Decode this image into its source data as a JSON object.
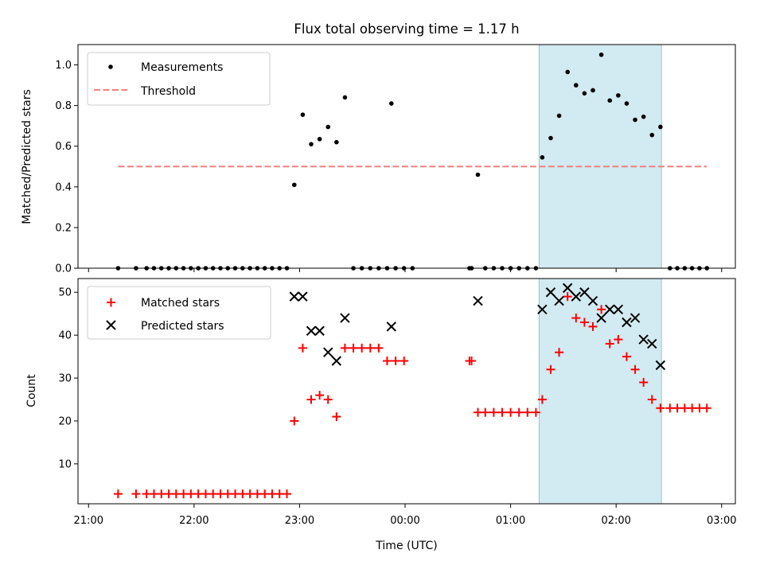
{
  "chart_data": {
    "type": "scatter",
    "title": "Flux total observing time = 1.17 h",
    "xlabel": "Time (UTC)",
    "x_unit": "hours after 21:00 UTC",
    "x_range": [
      -0.1,
      6.13
    ],
    "x_ticks": [
      {
        "value": 0,
        "label": "21:00"
      },
      {
        "value": 1,
        "label": "22:00"
      },
      {
        "value": 2,
        "label": "23:00"
      },
      {
        "value": 3,
        "label": "00:00"
      },
      {
        "value": 4,
        "label": "01:00"
      },
      {
        "value": 5,
        "label": "02:00"
      },
      {
        "value": 6,
        "label": "03:00"
      }
    ],
    "highlight_span": {
      "from": 4.27,
      "to": 5.43,
      "color": "#add8e6"
    },
    "top_panel": {
      "ylabel": "Matched/Predicted stars",
      "ylim": [
        0,
        1.1
      ],
      "yticks": [
        "0.0",
        "0.2",
        "0.4",
        "0.6",
        "0.8",
        "1.0"
      ],
      "legend_position": "upper-left",
      "series": [
        {
          "name": "Measurements",
          "marker": "dot",
          "color": "#000000",
          "points": [
            [
              0.28,
              0
            ],
            [
              0.45,
              0
            ],
            [
              0.55,
              0
            ],
            [
              0.62,
              0
            ],
            [
              0.69,
              0
            ],
            [
              0.76,
              0
            ],
            [
              0.83,
              0
            ],
            [
              0.9,
              0
            ],
            [
              0.97,
              0
            ],
            [
              1.04,
              0
            ],
            [
              1.11,
              0
            ],
            [
              1.18,
              0
            ],
            [
              1.25,
              0
            ],
            [
              1.32,
              0
            ],
            [
              1.39,
              0
            ],
            [
              1.46,
              0
            ],
            [
              1.53,
              0
            ],
            [
              1.6,
              0
            ],
            [
              1.67,
              0
            ],
            [
              1.74,
              0
            ],
            [
              1.81,
              0
            ],
            [
              1.88,
              0
            ],
            [
              1.95,
              0.41
            ],
            [
              2.03,
              0.755
            ],
            [
              2.11,
              0.61
            ],
            [
              2.19,
              0.635
            ],
            [
              2.27,
              0.695
            ],
            [
              2.35,
              0.62
            ],
            [
              2.43,
              0.84
            ],
            [
              2.51,
              0
            ],
            [
              2.59,
              0
            ],
            [
              2.67,
              0
            ],
            [
              2.75,
              0
            ],
            [
              2.83,
              0
            ],
            [
              2.91,
              0
            ],
            [
              2.99,
              0
            ],
            [
              3.07,
              0
            ],
            [
              2.87,
              0.81
            ],
            [
              3.61,
              0
            ],
            [
              3.63,
              0
            ],
            [
              3.69,
              0.46
            ],
            [
              3.76,
              0
            ],
            [
              3.84,
              0
            ],
            [
              3.92,
              0
            ],
            [
              4.0,
              0
            ],
            [
              4.08,
              0
            ],
            [
              4.16,
              0
            ],
            [
              4.24,
              0
            ],
            [
              4.3,
              0.545
            ],
            [
              4.38,
              0.64
            ],
            [
              4.46,
              0.75
            ],
            [
              4.54,
              0.965
            ],
            [
              4.62,
              0.9
            ],
            [
              4.7,
              0.86
            ],
            [
              4.78,
              0.875
            ],
            [
              4.86,
              1.05
            ],
            [
              4.94,
              0.825
            ],
            [
              5.02,
              0.85
            ],
            [
              5.1,
              0.81
            ],
            [
              5.18,
              0.73
            ],
            [
              5.26,
              0.745
            ],
            [
              5.34,
              0.655
            ],
            [
              5.42,
              0.695
            ],
            [
              5.51,
              0
            ],
            [
              5.58,
              0
            ],
            [
              5.65,
              0
            ],
            [
              5.72,
              0
            ],
            [
              5.79,
              0
            ],
            [
              5.86,
              0
            ]
          ]
        },
        {
          "name": "Threshold",
          "marker": "dashed-line",
          "color": "#f08080",
          "points": [
            [
              0.28,
              0.5
            ],
            [
              5.86,
              0.5
            ]
          ]
        }
      ]
    },
    "bottom_panel": {
      "ylabel": "Count",
      "ylim": [
        0.7,
        53.2
      ],
      "yticks": [
        "10",
        "20",
        "30",
        "40",
        "50"
      ],
      "legend_position": "upper-left",
      "series": [
        {
          "name": "Matched stars",
          "marker": "plus",
          "color": "#ff0000",
          "points": [
            [
              0.28,
              3
            ],
            [
              0.45,
              3
            ],
            [
              0.55,
              3
            ],
            [
              0.62,
              3
            ],
            [
              0.69,
              3
            ],
            [
              0.76,
              3
            ],
            [
              0.83,
              3
            ],
            [
              0.9,
              3
            ],
            [
              0.97,
              3
            ],
            [
              1.04,
              3
            ],
            [
              1.11,
              3
            ],
            [
              1.18,
              3
            ],
            [
              1.25,
              3
            ],
            [
              1.32,
              3
            ],
            [
              1.39,
              3
            ],
            [
              1.46,
              3
            ],
            [
              1.53,
              3
            ],
            [
              1.6,
              3
            ],
            [
              1.67,
              3
            ],
            [
              1.74,
              3
            ],
            [
              1.81,
              3
            ],
            [
              1.88,
              3
            ],
            [
              1.95,
              20
            ],
            [
              2.03,
              37
            ],
            [
              2.11,
              25
            ],
            [
              2.19,
              26
            ],
            [
              2.27,
              25
            ],
            [
              2.35,
              21
            ],
            [
              2.43,
              37
            ],
            [
              2.51,
              37
            ],
            [
              2.59,
              37
            ],
            [
              2.67,
              37
            ],
            [
              2.75,
              37
            ],
            [
              2.83,
              34
            ],
            [
              2.91,
              34
            ],
            [
              2.99,
              34
            ],
            [
              3.61,
              34
            ],
            [
              3.63,
              34
            ],
            [
              3.69,
              22
            ],
            [
              3.76,
              22
            ],
            [
              3.84,
              22
            ],
            [
              3.92,
              22
            ],
            [
              4.0,
              22
            ],
            [
              4.08,
              22
            ],
            [
              4.16,
              22
            ],
            [
              4.24,
              22
            ],
            [
              4.3,
              25
            ],
            [
              4.38,
              32
            ],
            [
              4.46,
              36
            ],
            [
              4.54,
              49
            ],
            [
              4.62,
              44
            ],
            [
              4.7,
              43
            ],
            [
              4.78,
              42
            ],
            [
              4.86,
              46
            ],
            [
              4.94,
              38
            ],
            [
              5.02,
              39
            ],
            [
              5.1,
              35
            ],
            [
              5.18,
              32
            ],
            [
              5.26,
              29
            ],
            [
              5.34,
              25
            ],
            [
              5.42,
              23
            ],
            [
              5.51,
              23
            ],
            [
              5.58,
              23
            ],
            [
              5.65,
              23
            ],
            [
              5.72,
              23
            ],
            [
              5.79,
              23
            ],
            [
              5.86,
              23
            ]
          ]
        },
        {
          "name": "Predicted stars",
          "marker": "x",
          "color": "#000000",
          "points": [
            [
              1.95,
              49
            ],
            [
              2.03,
              49
            ],
            [
              2.11,
              41
            ],
            [
              2.19,
              41
            ],
            [
              2.27,
              36
            ],
            [
              2.35,
              34
            ],
            [
              2.43,
              44
            ],
            [
              2.87,
              42
            ],
            [
              3.69,
              48
            ],
            [
              4.3,
              46
            ],
            [
              4.38,
              50
            ],
            [
              4.46,
              48
            ],
            [
              4.54,
              51
            ],
            [
              4.62,
              49
            ],
            [
              4.7,
              50
            ],
            [
              4.78,
              48
            ],
            [
              4.86,
              44
            ],
            [
              4.94,
              46
            ],
            [
              5.02,
              46
            ],
            [
              5.1,
              43
            ],
            [
              5.18,
              44
            ],
            [
              5.26,
              39
            ],
            [
              5.34,
              38
            ],
            [
              5.42,
              33
            ]
          ]
        }
      ]
    }
  }
}
